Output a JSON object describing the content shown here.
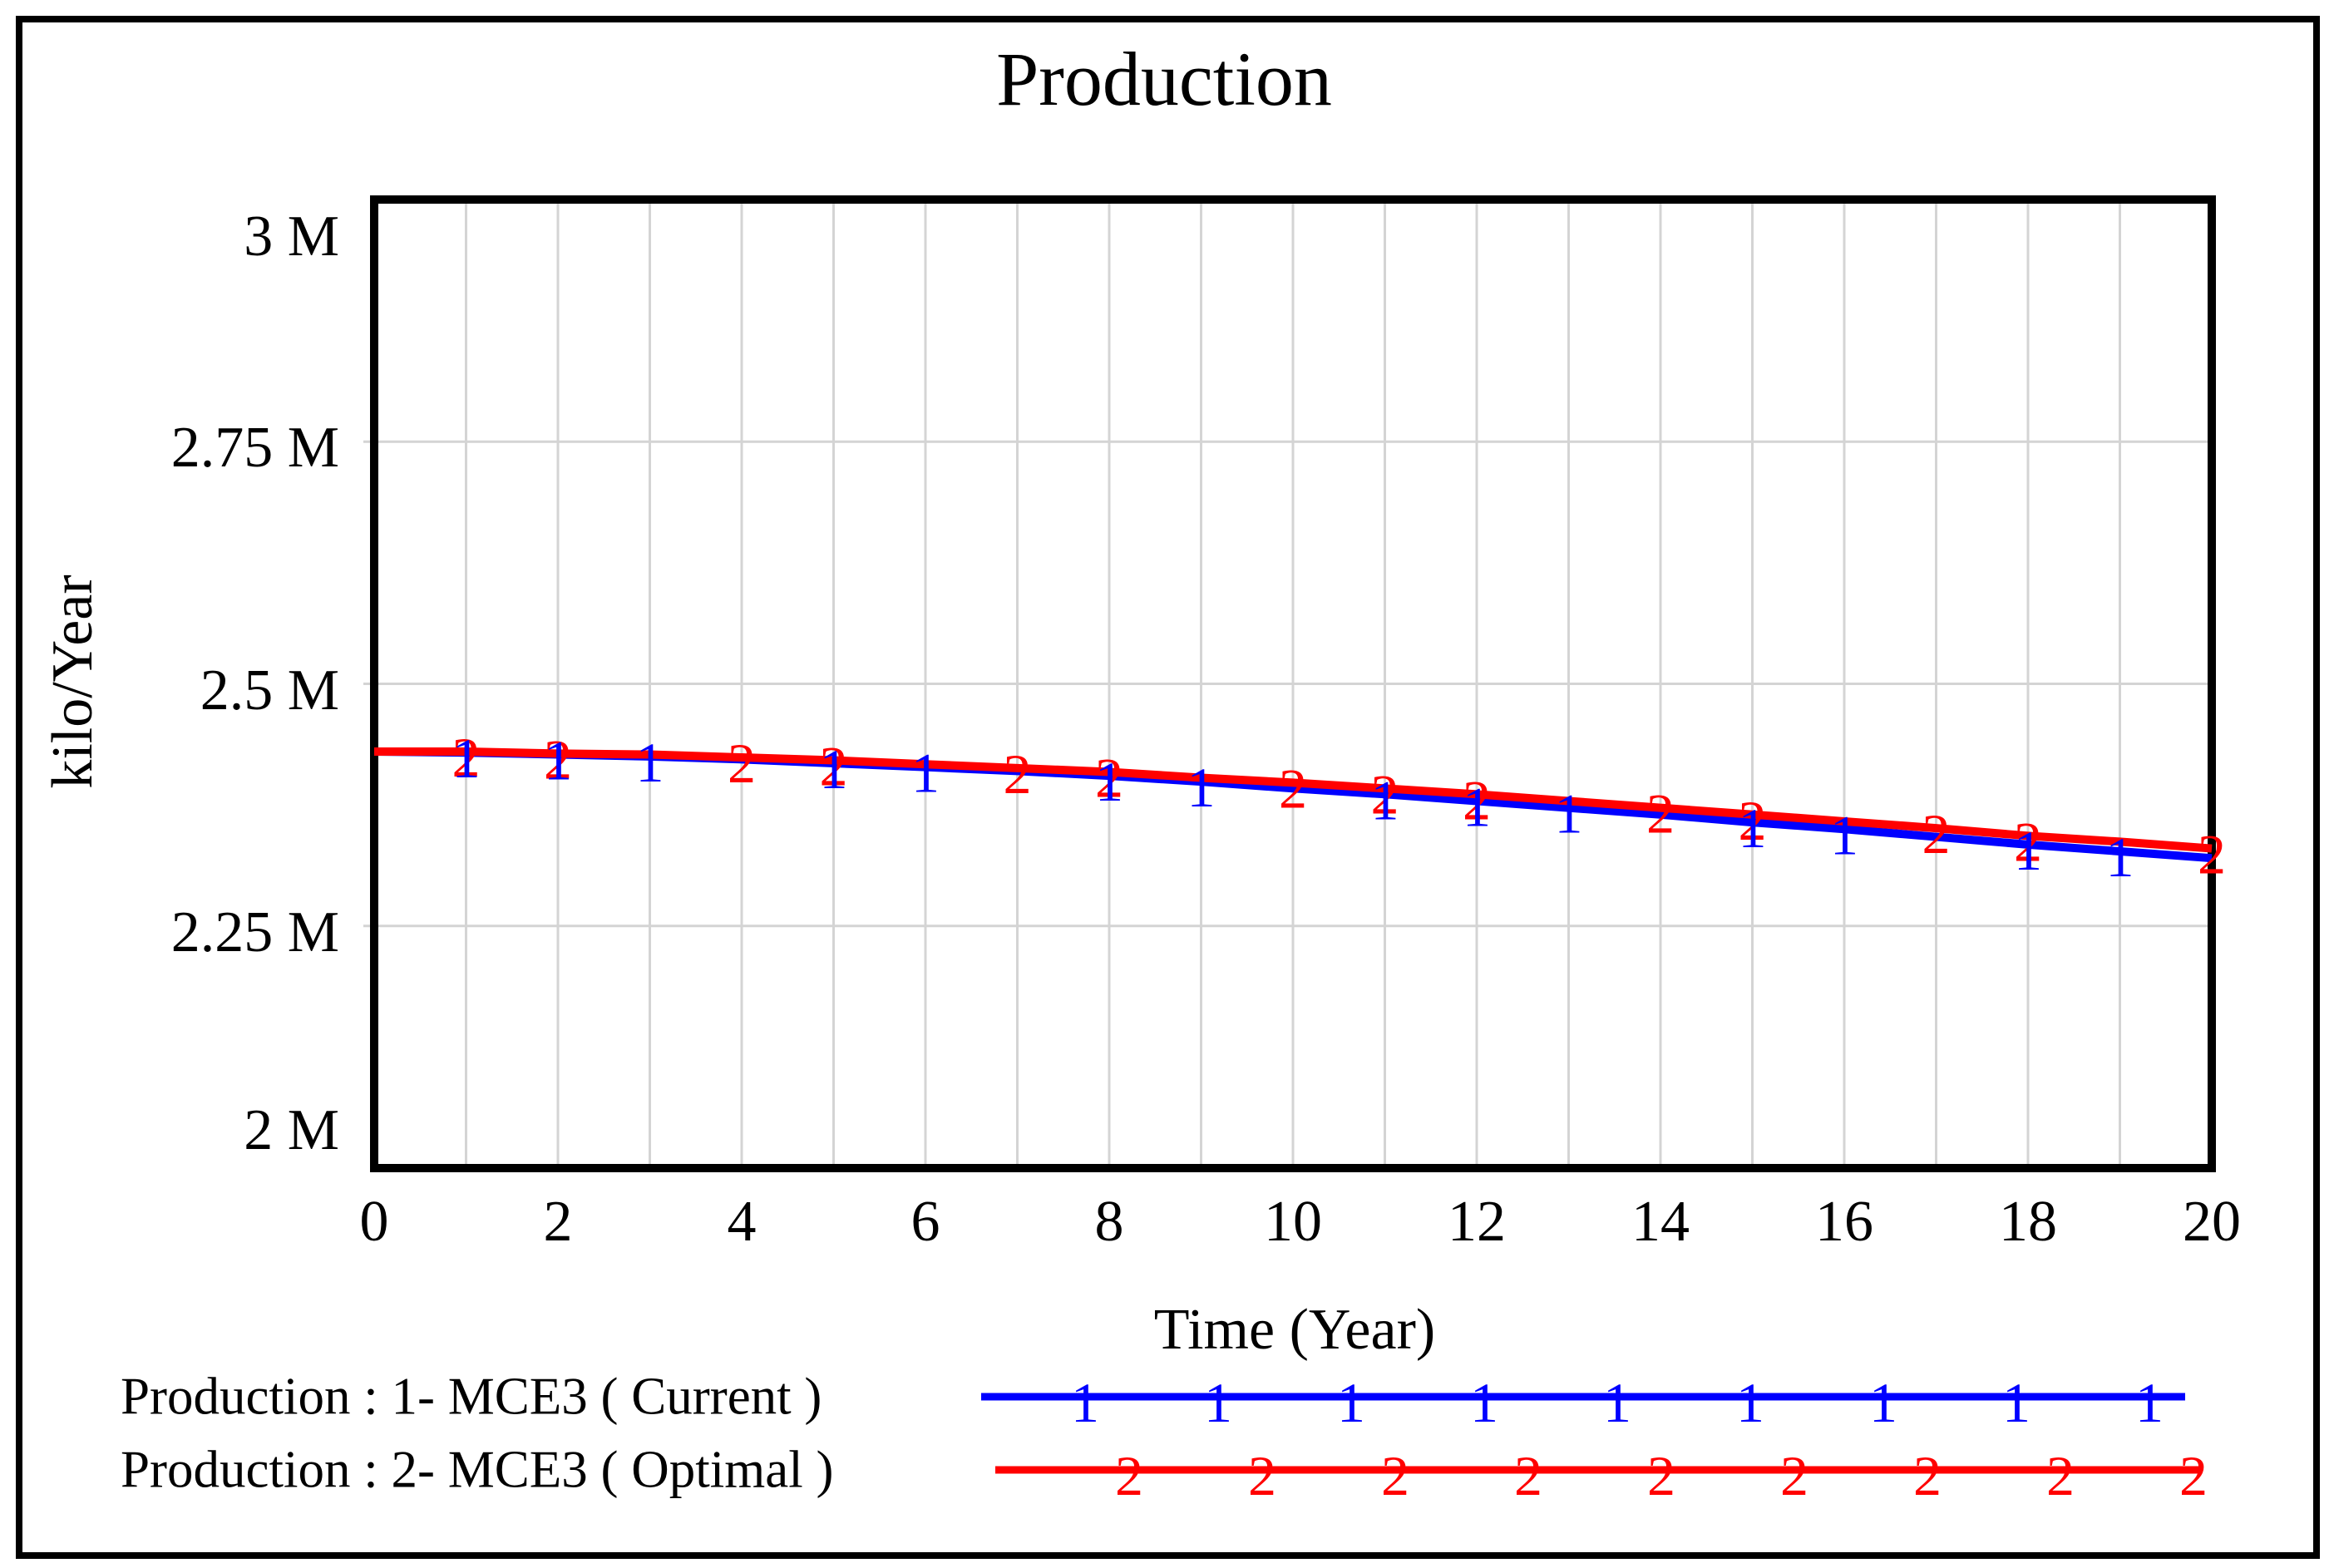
{
  "title": "Production",
  "y_axis": {
    "unit": "kilo/Year",
    "ticks": [
      {
        "label": "3 M",
        "value": 3.0
      },
      {
        "label": "2.75 M",
        "value": 2.75
      },
      {
        "label": "2.5 M",
        "value": 2.5
      },
      {
        "label": "2.25 M",
        "value": 2.25
      },
      {
        "label": "2 M",
        "value": 2.0
      }
    ]
  },
  "x_axis": {
    "title": "Time (Year)",
    "ticks": [
      {
        "label": "0",
        "value": 0
      },
      {
        "label": "2",
        "value": 2
      },
      {
        "label": "4",
        "value": 4
      },
      {
        "label": "6",
        "value": 6
      },
      {
        "label": "8",
        "value": 8
      },
      {
        "label": "10",
        "value": 10
      },
      {
        "label": "12",
        "value": 12
      },
      {
        "label": "14",
        "value": 14
      },
      {
        "label": "16",
        "value": 16
      },
      {
        "label": "18",
        "value": 18
      },
      {
        "label": "20",
        "value": 20
      }
    ]
  },
  "colors": {
    "series1": "#0000ff",
    "series2": "#ff0000",
    "grid": "#d4d4d4",
    "frame": "#000000",
    "background": "#ffffff"
  },
  "chart_data": {
    "type": "line",
    "title": "Production",
    "xlabel": "Time (Year)",
    "ylabel": "kilo/Year",
    "xlim": [
      0,
      20
    ],
    "ylim_M": [
      2.0,
      3.0
    ],
    "y_gridline_values_M": [
      2.25,
      2.5,
      2.75
    ],
    "x_gridline_step": 1,
    "grid": "on",
    "legend_position": "bottom-left",
    "x": [
      0,
      1,
      2,
      3,
      4,
      5,
      6,
      7,
      8,
      9,
      10,
      11,
      12,
      13,
      14,
      15,
      16,
      17,
      18,
      19,
      20
    ],
    "series": [
      {
        "name": "Production : 1- MCE3 ( Current )",
        "marker": "1",
        "color": "#0000ff",
        "values_M": [
          2.43,
          2.429,
          2.427,
          2.425,
          2.422,
          2.418,
          2.414,
          2.41,
          2.405,
          2.399,
          2.392,
          2.386,
          2.379,
          2.372,
          2.365,
          2.357,
          2.35,
          2.342,
          2.334,
          2.327,
          2.32
        ],
        "marker_years": [
          1,
          2,
          3,
          5,
          6,
          8,
          9,
          11,
          12,
          13,
          15,
          16,
          18,
          19
        ]
      },
      {
        "name": "Production : 2- MCE3 ( Optimal )",
        "marker": "2",
        "color": "#ff0000",
        "values_M": [
          2.43,
          2.43,
          2.428,
          2.427,
          2.424,
          2.421,
          2.417,
          2.413,
          2.409,
          2.403,
          2.398,
          2.392,
          2.386,
          2.379,
          2.372,
          2.365,
          2.358,
          2.351,
          2.343,
          2.337,
          2.33
        ],
        "marker_years": [
          1,
          2,
          4,
          5,
          7,
          8,
          10,
          11,
          12,
          14,
          15,
          17,
          18,
          20
        ]
      }
    ]
  },
  "legend": {
    "rows": [
      {
        "label": "Production : 1- MCE3 ( Current )",
        "marker": "1",
        "color": "#0000ff"
      },
      {
        "label": "Production : 2- MCE3 ( Optimal )",
        "marker": "2",
        "color": "#ff0000"
      }
    ]
  }
}
